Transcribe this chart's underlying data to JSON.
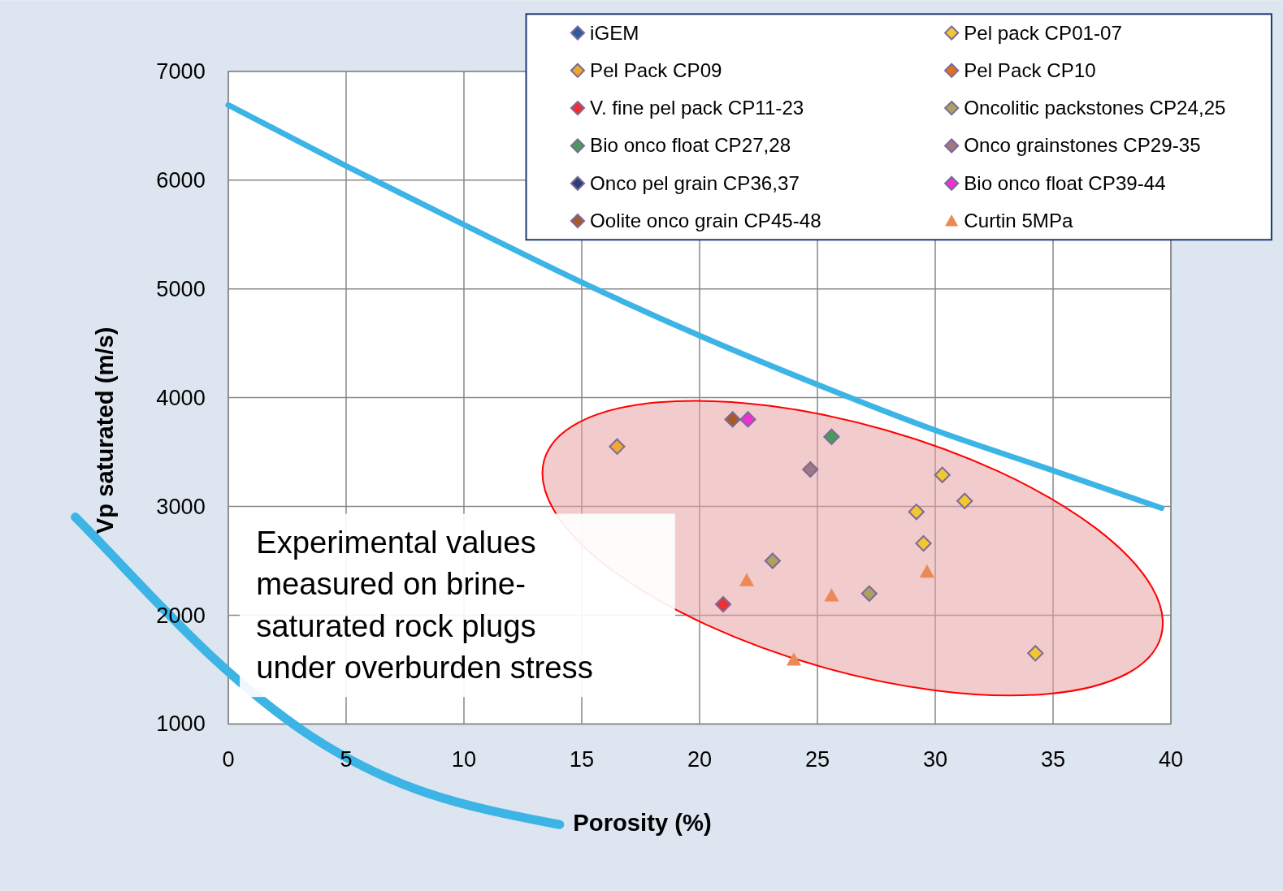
{
  "chart_data": {
    "type": "scatter",
    "xlabel": "Porosity (%)",
    "ylabel": "Vp saturated (m/s)",
    "xlim": [
      0,
      40
    ],
    "ylim": [
      1000,
      7000
    ],
    "xticks": [
      0,
      5,
      10,
      15,
      20,
      25,
      30,
      35,
      40
    ],
    "yticks": [
      1000,
      2000,
      3000,
      4000,
      5000,
      6000,
      7000
    ],
    "grid": true,
    "legend": "top right",
    "marker": "diamond",
    "annotations": [
      "Experimental values measured on brine-saturated rock plugs under overburden stress"
    ],
    "series": [
      {
        "name": "iGEM",
        "color": "#2e5c9a"
      },
      {
        "name": "Pel pack CP01-07",
        "color": "#f2c830",
        "x": [
          30.3,
          31.25,
          29.2,
          29.5,
          34.25
        ],
        "values": [
          3290,
          3050,
          2950,
          2660,
          1650
        ]
      },
      {
        "name": "Pel Pack CP09",
        "color": "#f0a830",
        "x": [
          16.5
        ],
        "values": [
          3550
        ]
      },
      {
        "name": "Pel Pack CP10",
        "color": "#e07020"
      },
      {
        "name": "V. fine pel pack CP11-23",
        "color": "#f03030",
        "x": [
          21.0
        ],
        "values": [
          2100
        ]
      },
      {
        "name": "Oncolitic packstones CP24,25",
        "color": "#b0a060",
        "x": [
          23.1,
          27.2
        ],
        "values": [
          2500,
          2200
        ]
      },
      {
        "name": "Bio onco float CP27,28",
        "color": "#4a9a5a",
        "x": [
          25.6
        ],
        "values": [
          3640
        ]
      },
      {
        "name": "Onco grainstones CP29-35",
        "color": "#a07880",
        "x": [
          24.7
        ],
        "values": [
          3340
        ]
      },
      {
        "name": "Onco pel grain CP36,37",
        "color": "#2a3f7a"
      },
      {
        "name": "Bio onco float CP39-44",
        "color": "#f030d0",
        "x": [
          22.05
        ],
        "values": [
          3800
        ]
      },
      {
        "name": "Oolite onco grain CP45-48",
        "color": "#a85a2a",
        "x": [
          21.4
        ],
        "values": [
          3800
        ]
      },
      {
        "name": "Curtin 5MPa",
        "color": "#ec8a55",
        "marker": "triangle",
        "x": [
          22.0,
          25.6,
          24.0,
          29.65
        ],
        "values": [
          2320,
          2180,
          1590,
          2400
        ]
      },
      {
        "type": "line",
        "color": "#3cb4e5",
        "marker": "none",
        "x": [
          0,
          5,
          10,
          15,
          20,
          25,
          30,
          35,
          39.6
        ],
        "values": [
          6690,
          6130,
          5590,
          5060,
          4570,
          4120,
          3700,
          3330,
          2985
        ]
      }
    ]
  }
}
